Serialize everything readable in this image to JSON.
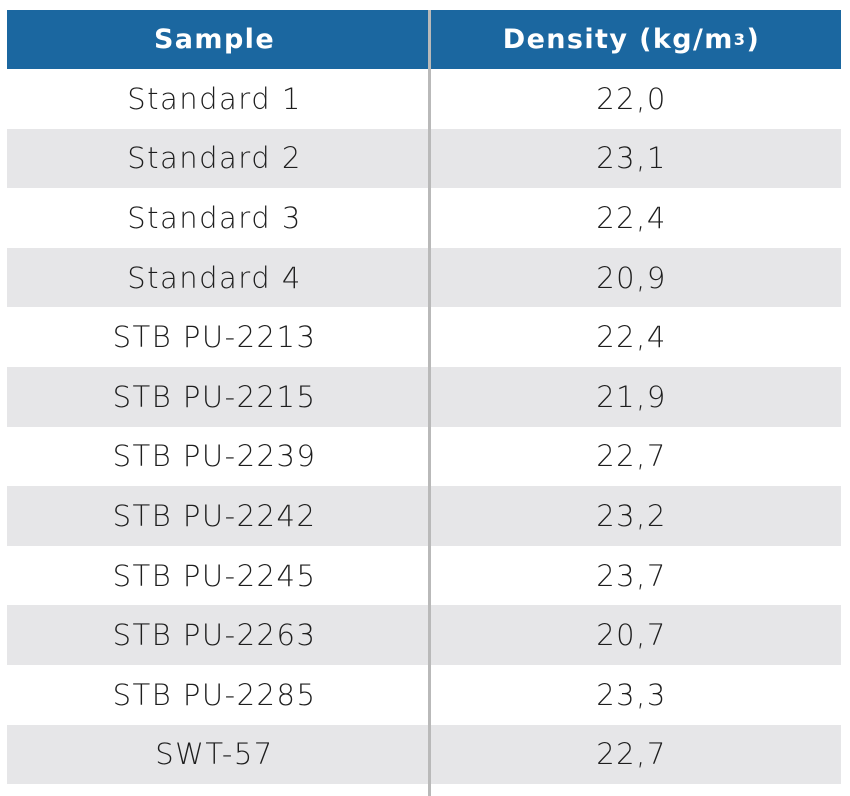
{
  "table": {
    "headers": {
      "sample": "Sample",
      "density_prefix": "Density (kg/m",
      "density_sup": "3",
      "density_suffix": ")"
    },
    "rows": [
      {
        "sample": "Standard 1",
        "density": "22,0"
      },
      {
        "sample": "Standard 2",
        "density": "23,1"
      },
      {
        "sample": "Standard 3",
        "density": "22,4"
      },
      {
        "sample": "Standard 4",
        "density": "20,9"
      },
      {
        "sample": "STB PU-2213",
        "density": "22,4"
      },
      {
        "sample": "STB PU-2215",
        "density": "21,9"
      },
      {
        "sample": "STB PU-2239",
        "density": "22,7"
      },
      {
        "sample": "STB PU-2242",
        "density": "23,2"
      },
      {
        "sample": "STB PU-2245",
        "density": "23,7"
      },
      {
        "sample": "STB PU-2263",
        "density": "20,7"
      },
      {
        "sample": "STB PU-2285",
        "density": "23,3"
      },
      {
        "sample": "SWT-57",
        "density": "22,7"
      }
    ],
    "colors": {
      "header_bg": "#1b67a0",
      "stripe_bg": "#e6e6e8",
      "divider": "#b9b9b9"
    }
  }
}
